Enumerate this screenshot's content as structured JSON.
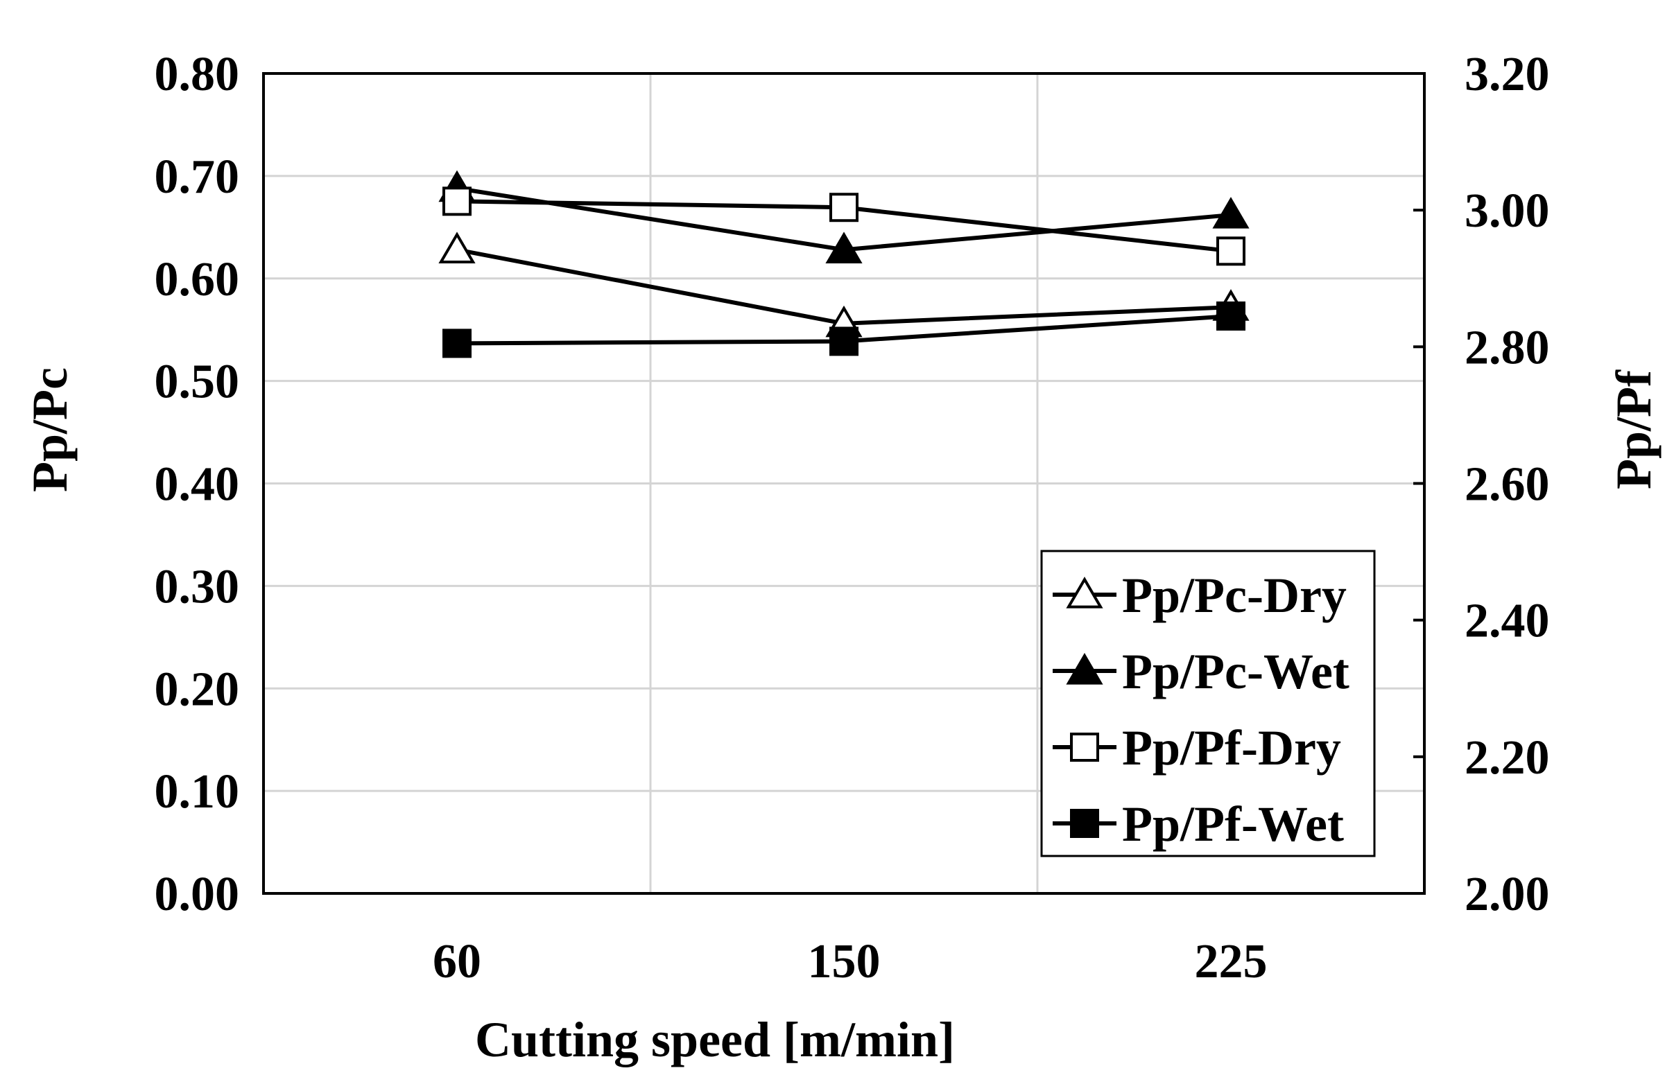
{
  "chart_data": {
    "type": "line",
    "title": "",
    "xlabel": "Cutting speed [m/min]",
    "ylabel_left": "Pp/Pc",
    "ylabel_right": "Pp/Pf",
    "categories": [
      "60",
      "150",
      "225"
    ],
    "ylim_left": [
      0.0,
      0.8
    ],
    "ylim_right": [
      2.0,
      3.2
    ],
    "yticks_left": [
      "0.00",
      "0.10",
      "0.20",
      "0.30",
      "0.40",
      "0.50",
      "0.60",
      "0.70",
      "0.80"
    ],
    "yticks_right": [
      "2.00",
      "2.20",
      "2.40",
      "2.60",
      "2.80",
      "3.00",
      "3.20"
    ],
    "grid": true,
    "legend_position": "bottom-right",
    "series": [
      {
        "name": "Pp/Pc-Dry",
        "axis": "left",
        "marker": "triangle",
        "filled": false,
        "values": [
          0.628,
          0.556,
          0.572
        ]
      },
      {
        "name": "Pp/Pc-Wet",
        "axis": "left",
        "marker": "triangle",
        "filled": true,
        "values": [
          0.688,
          0.628,
          0.662
        ]
      },
      {
        "name": "Pp/Pf-Dry",
        "axis": "right",
        "marker": "square",
        "filled": false,
        "values": [
          3.013,
          3.004,
          2.94
        ]
      },
      {
        "name": "Pp/Pf-Wet",
        "axis": "right",
        "marker": "square",
        "filled": true,
        "values": [
          2.805,
          2.808,
          2.845
        ]
      }
    ]
  }
}
